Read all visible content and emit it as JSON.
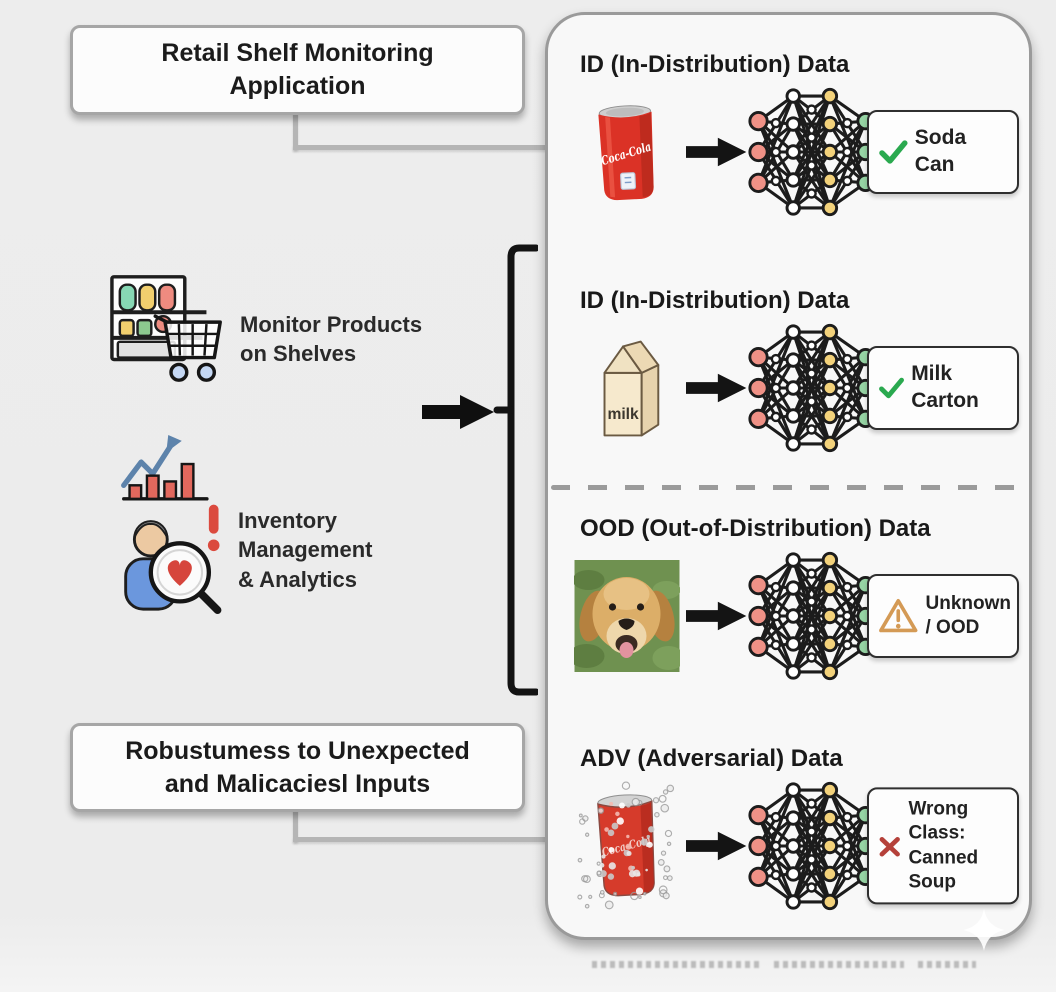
{
  "left": {
    "top_box": {
      "line1": "Retail Shelf Monitoring",
      "line2": "Application"
    },
    "features": [
      {
        "label_line1": "Monitor Products",
        "label_line2": "on Shelves"
      },
      {
        "label_line1": "Inventory",
        "label_line2": "Management",
        "label_line3": "& Analytics"
      }
    ],
    "bottom_box": {
      "line1": "Robustumess to Unexpected",
      "line2": "and Malicaciesl Inputs"
    }
  },
  "panel": {
    "rows": [
      {
        "header": "ID (In-Distribution) Data",
        "input_item": "soda-can-photo",
        "can_brand_text": "Coca-Cola",
        "result": {
          "icon": "check-icon",
          "line1": "Soda Can"
        }
      },
      {
        "header": "ID (In-Distribution) Data",
        "input_item": "milk-carton-illustration",
        "carton_text": "milk",
        "result": {
          "icon": "check-icon",
          "line1": "Milk Carton"
        }
      },
      {
        "header": "OOD (Out-of-Distribution) Data",
        "input_item": "dog-photo",
        "result": {
          "icon": "warning-icon",
          "line1": "Unknown",
          "line2": "/ OOD"
        }
      },
      {
        "header": "ADV (Adversarial) Data",
        "input_item": "adversarial-soda-can",
        "can_brand_text": "Coca-Cola",
        "result": {
          "icon": "cross-icon",
          "line1": "Wrong Class:",
          "line2": "Canned Soup"
        }
      }
    ]
  },
  "colors": {
    "page_bg": "#ededed",
    "panel_bg": "#f8f8f8",
    "box_border": "#a6a6a6",
    "connector_gray": "#b5b5b5",
    "check_green": "#2aa94f",
    "warning_orange": "#d49a55",
    "cross_red": "#b5413a",
    "nn_input_pink": "#ef9186",
    "nn_hidden_white": "#ffffff",
    "nn_hidden_yellow": "#f3d27b",
    "nn_output_green": "#96d4a4",
    "can_red": "#db3226",
    "milk_cream": "#f6e9cd"
  }
}
